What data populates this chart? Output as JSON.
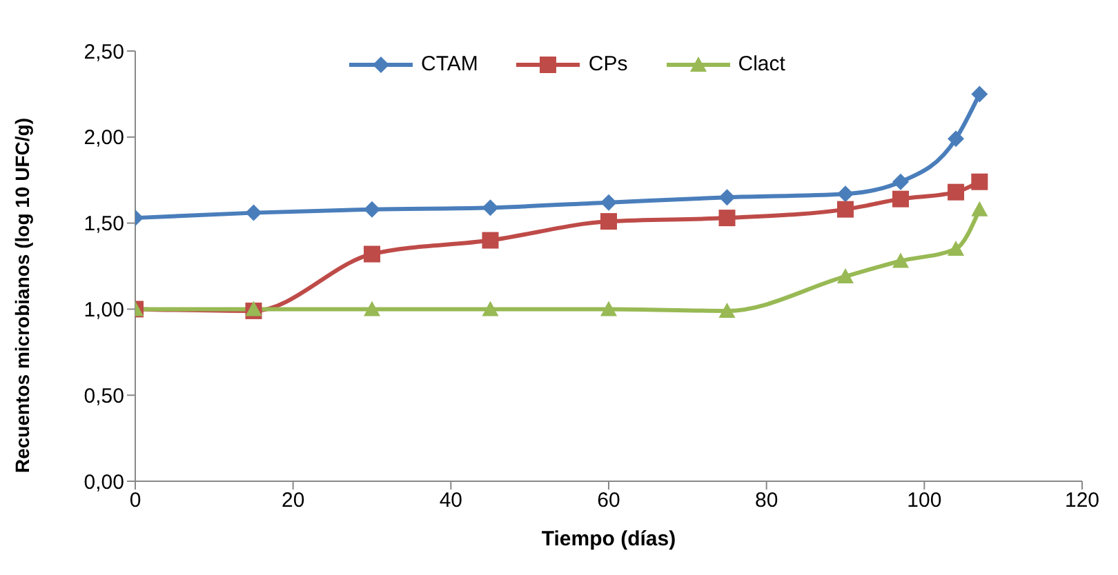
{
  "chart_data": {
    "type": "line",
    "xlabel": "Tiempo (días)",
    "ylabel": "Recuentos microbianos (log 10 UFC/g)",
    "x": [
      0,
      15,
      30,
      45,
      60,
      75,
      90,
      97,
      104,
      107
    ],
    "series": [
      {
        "name": "CTAM",
        "color": "#4a7ebb",
        "marker": "diamond",
        "values": [
          1.53,
          1.56,
          1.58,
          1.59,
          1.62,
          1.65,
          1.67,
          1.74,
          1.99,
          2.25
        ]
      },
      {
        "name": "CPs",
        "color": "#be4b48",
        "marker": "square",
        "values": [
          1.0,
          0.99,
          1.32,
          1.4,
          1.51,
          1.53,
          1.58,
          1.64,
          1.68,
          1.74
        ]
      },
      {
        "name": "Clact",
        "color": "#98b954",
        "marker": "triangle",
        "values": [
          1.0,
          1.0,
          1.0,
          1.0,
          1.0,
          0.99,
          1.19,
          1.28,
          1.35,
          1.58
        ]
      }
    ],
    "xlim": [
      0,
      120
    ],
    "xticks": [
      0,
      20,
      40,
      60,
      80,
      100,
      120
    ],
    "ylim": [
      0,
      2.5
    ],
    "yticks": [
      {
        "value": 0,
        "label": "0,00"
      },
      {
        "value": 0.5,
        "label": "0,50"
      },
      {
        "value": 1,
        "label": "1,00"
      },
      {
        "value": 1.5,
        "label": "1,50"
      },
      {
        "value": 2,
        "label": "2,00"
      },
      {
        "value": 2.5,
        "label": "2,50"
      }
    ],
    "legend": "top",
    "grid": false,
    "line_style": "solid"
  }
}
